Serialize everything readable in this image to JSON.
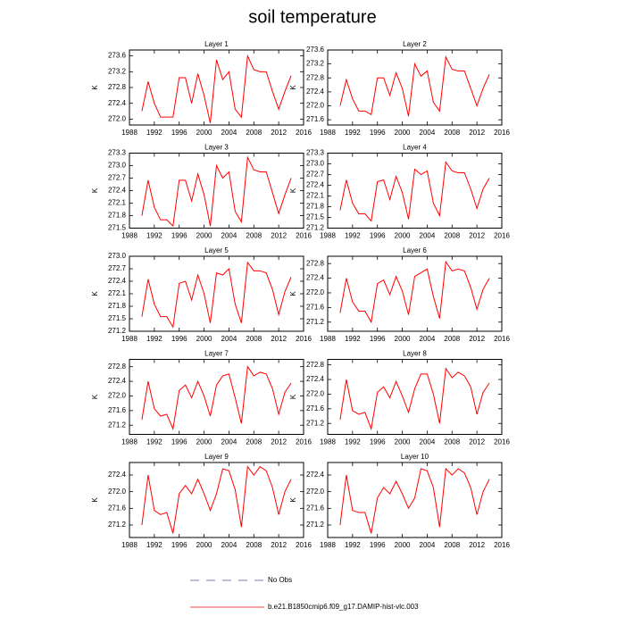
{
  "title": "soil temperature",
  "legend": [
    {
      "name": "No Obs",
      "color": "#4f4fa0",
      "dashed": true
    },
    {
      "name": "b.e21.B1850cmip6.f09_g17.DAMIP-hist-vlc.003",
      "color": "#ff0000",
      "dashed": false
    }
  ],
  "chart_data": [
    {
      "type": "line",
      "title": "Layer 1",
      "ylabel": "K",
      "color": "#ff0000",
      "xlim": [
        1988,
        2016
      ],
      "xticks": [
        1988,
        1992,
        1996,
        2000,
        2004,
        2008,
        2012,
        2016
      ],
      "ylim": [
        271.85,
        273.75
      ],
      "yticks": [
        {
          "value": 272,
          "label": "272.0"
        },
        272.4,
        272.8,
        273.2,
        273.6
      ],
      "x": [
        1990,
        1991,
        1992,
        1993,
        1994,
        1995,
        1996,
        1997,
        1998,
        1999,
        2000,
        2001,
        2002,
        2003,
        2004,
        2005,
        2006,
        2007,
        2008,
        2009,
        2010,
        2011,
        2012,
        2013,
        2014
      ],
      "values": [
        272.2,
        272.95,
        272.4,
        272.05,
        272.05,
        272.05,
        273.05,
        273.05,
        272.4,
        273.15,
        272.6,
        271.9,
        273.5,
        273.0,
        273.2,
        272.25,
        272.05,
        273.6,
        273.25,
        273.2,
        273.2,
        272.7,
        272.25,
        272.7,
        273.1
      ]
    },
    {
      "type": "line",
      "title": "Layer 2",
      "ylabel": "K",
      "color": "#ff0000",
      "xlim": [
        1988,
        2016
      ],
      "xticks": [
        1988,
        1992,
        1996,
        2000,
        2004,
        2008,
        2012,
        2016
      ],
      "ylim": [
        271.45,
        273.6
      ],
      "yticks": [
        271.6,
        {
          "value": 272,
          "label": "272.0"
        },
        272.4,
        272.8,
        273.2,
        273.6
      ],
      "x": [
        1990,
        1991,
        1992,
        1993,
        1994,
        1995,
        1996,
        1997,
        1998,
        1999,
        2000,
        2001,
        2002,
        2003,
        2004,
        2005,
        2006,
        2007,
        2008,
        2009,
        2010,
        2011,
        2012,
        2013,
        2014
      ],
      "values": [
        272.0,
        272.75,
        272.2,
        271.85,
        271.85,
        271.75,
        272.8,
        272.8,
        272.3,
        272.95,
        272.5,
        271.7,
        273.2,
        272.85,
        273.0,
        272.1,
        271.85,
        273.4,
        273.05,
        273.0,
        273.0,
        272.5,
        272.0,
        272.5,
        272.9
      ]
    },
    {
      "type": "line",
      "title": "Layer 3",
      "ylabel": "K",
      "color": "#ff0000",
      "xlim": [
        1988,
        2016
      ],
      "xticks": [
        1988,
        1992,
        1996,
        2000,
        2004,
        2008,
        2012,
        2016
      ],
      "ylim": [
        271.5,
        273.3
      ],
      "yticks": [
        271.5,
        271.8,
        272.1,
        272.4,
        272.7,
        {
          "value": 273,
          "label": "273.0"
        },
        273.3
      ],
      "x": [
        1990,
        1991,
        1992,
        1993,
        1994,
        1995,
        1996,
        1997,
        1998,
        1999,
        2000,
        2001,
        2002,
        2003,
        2004,
        2005,
        2006,
        2007,
        2008,
        2009,
        2010,
        2011,
        2012,
        2013,
        2014
      ],
      "values": [
        271.8,
        272.65,
        272.0,
        271.7,
        271.7,
        271.55,
        272.65,
        272.65,
        272.15,
        272.8,
        272.3,
        271.55,
        273.0,
        272.7,
        272.85,
        271.9,
        271.65,
        273.2,
        272.9,
        272.85,
        272.85,
        272.35,
        271.85,
        272.3,
        272.7
      ]
    },
    {
      "type": "line",
      "title": "Layer 4",
      "ylabel": "K",
      "color": "#ff0000",
      "xlim": [
        1988,
        2016
      ],
      "xticks": [
        1988,
        1992,
        1996,
        2000,
        2004,
        2008,
        2012,
        2016
      ],
      "ylim": [
        271.2,
        273.3
      ],
      "yticks": [
        271.2,
        271.5,
        271.8,
        272.1,
        272.4,
        272.7,
        {
          "value": 273,
          "label": "273.0"
        },
        273.3
      ],
      "x": [
        1990,
        1991,
        1992,
        1993,
        1994,
        1995,
        1996,
        1997,
        1998,
        1999,
        2000,
        2001,
        2002,
        2003,
        2004,
        2005,
        2006,
        2007,
        2008,
        2009,
        2010,
        2011,
        2012,
        2013,
        2014
      ],
      "values": [
        271.7,
        272.55,
        271.9,
        271.6,
        271.6,
        271.4,
        272.5,
        272.55,
        272.0,
        272.65,
        272.2,
        271.45,
        272.85,
        272.7,
        272.8,
        271.9,
        271.55,
        273.05,
        272.8,
        272.75,
        272.75,
        272.3,
        271.75,
        272.3,
        272.6
      ]
    },
    {
      "type": "line",
      "title": "Layer 5",
      "ylabel": "K",
      "color": "#ff0000",
      "xlim": [
        1988,
        2016
      ],
      "xticks": [
        1988,
        1992,
        1996,
        2000,
        2004,
        2008,
        2012,
        2016
      ],
      "ylim": [
        271.2,
        273.0
      ],
      "yticks": [
        271.2,
        271.5,
        271.8,
        272.1,
        272.4,
        272.7,
        {
          "value": 273,
          "label": "273.0"
        }
      ],
      "x": [
        1990,
        1991,
        1992,
        1993,
        1994,
        1995,
        1996,
        1997,
        1998,
        1999,
        2000,
        2001,
        2002,
        2003,
        2004,
        2005,
        2006,
        2007,
        2008,
        2009,
        2010,
        2011,
        2012,
        2013,
        2014
      ],
      "values": [
        271.55,
        272.45,
        271.85,
        271.55,
        271.55,
        271.3,
        272.35,
        272.4,
        271.95,
        272.55,
        272.1,
        271.4,
        272.6,
        272.55,
        272.7,
        271.85,
        271.4,
        272.85,
        272.65,
        272.65,
        272.6,
        272.2,
        271.6,
        272.15,
        272.5
      ]
    },
    {
      "type": "line",
      "title": "Layer 6",
      "ylabel": "K",
      "color": "#ff0000",
      "xlim": [
        1988,
        2016
      ],
      "xticks": [
        1988,
        1992,
        1996,
        2000,
        2004,
        2008,
        2012,
        2016
      ],
      "ylim": [
        270.95,
        273.0
      ],
      "yticks": [
        271.2,
        271.6,
        {
          "value": 272,
          "label": "272.0"
        },
        272.4,
        272.8
      ],
      "x": [
        1990,
        1991,
        1992,
        1993,
        1994,
        1995,
        1996,
        1997,
        1998,
        1999,
        2000,
        2001,
        2002,
        2003,
        2004,
        2005,
        2006,
        2007,
        2008,
        2009,
        2010,
        2011,
        2012,
        2013,
        2014
      ],
      "values": [
        271.45,
        272.4,
        271.75,
        271.5,
        271.5,
        271.2,
        272.25,
        272.35,
        271.95,
        272.45,
        272.05,
        271.4,
        272.45,
        272.55,
        272.65,
        271.9,
        271.3,
        272.85,
        272.6,
        272.65,
        272.6,
        272.15,
        271.55,
        272.1,
        272.4
      ]
    },
    {
      "type": "line",
      "title": "Layer 7",
      "ylabel": "K",
      "color": "#ff0000",
      "xlim": [
        1988,
        2016
      ],
      "xticks": [
        1988,
        1992,
        1996,
        2000,
        2004,
        2008,
        2012,
        2016
      ],
      "ylim": [
        270.95,
        273.0
      ],
      "yticks": [
        271.2,
        271.6,
        {
          "value": 272,
          "label": "272.0"
        },
        272.4,
        272.8
      ],
      "x": [
        1990,
        1991,
        1992,
        1993,
        1994,
        1995,
        1996,
        1997,
        1998,
        1999,
        2000,
        2001,
        2002,
        2003,
        2004,
        2005,
        2006,
        2007,
        2008,
        2009,
        2010,
        2011,
        2012,
        2013,
        2014
      ],
      "values": [
        271.35,
        272.4,
        271.65,
        271.45,
        271.5,
        271.1,
        272.15,
        272.3,
        271.95,
        272.4,
        272.0,
        271.45,
        272.3,
        272.55,
        272.6,
        271.95,
        271.25,
        272.8,
        272.55,
        272.65,
        272.6,
        272.2,
        271.5,
        272.1,
        272.35
      ]
    },
    {
      "type": "line",
      "title": "Layer 8",
      "ylabel": "K",
      "color": "#ff0000",
      "xlim": [
        1988,
        2016
      ],
      "xticks": [
        1988,
        1992,
        1996,
        2000,
        2004,
        2008,
        2012,
        2016
      ],
      "ylim": [
        270.9,
        272.95
      ],
      "yticks": [
        271.2,
        271.6,
        {
          "value": 272,
          "label": "272.0"
        },
        272.4,
        272.8
      ],
      "x": [
        1990,
        1991,
        1992,
        1993,
        1994,
        1995,
        1996,
        1997,
        1998,
        1999,
        2000,
        2001,
        2002,
        2003,
        2004,
        2005,
        2006,
        2007,
        2008,
        2009,
        2010,
        2011,
        2012,
        2013,
        2014
      ],
      "values": [
        271.3,
        272.4,
        271.55,
        271.45,
        271.5,
        271.05,
        272.05,
        272.2,
        271.9,
        272.35,
        271.95,
        271.5,
        272.15,
        272.55,
        272.55,
        272.0,
        271.2,
        272.7,
        272.45,
        272.6,
        272.5,
        272.2,
        271.45,
        272.05,
        272.3
      ]
    },
    {
      "type": "line",
      "title": "Layer 9",
      "ylabel": "K",
      "color": "#ff0000",
      "xlim": [
        1988,
        2016
      ],
      "xticks": [
        1988,
        1992,
        1996,
        2000,
        2004,
        2008,
        2012,
        2016
      ],
      "ylim": [
        270.9,
        272.7
      ],
      "yticks": [
        271.2,
        271.6,
        {
          "value": 272,
          "label": "272.0"
        },
        272.4
      ],
      "x": [
        1990,
        1991,
        1992,
        1993,
        1994,
        1995,
        1996,
        1997,
        1998,
        1999,
        2000,
        2001,
        2002,
        2003,
        2004,
        2005,
        2006,
        2007,
        2008,
        2009,
        2010,
        2011,
        2012,
        2013,
        2014
      ],
      "values": [
        271.2,
        272.4,
        271.55,
        271.45,
        271.5,
        271.0,
        271.95,
        272.15,
        271.95,
        272.3,
        271.95,
        271.55,
        271.95,
        272.55,
        272.5,
        272.05,
        271.15,
        272.6,
        272.4,
        272.6,
        272.5,
        272.1,
        271.45,
        272.0,
        272.3
      ]
    },
    {
      "type": "line",
      "title": "Layer 10",
      "ylabel": "K",
      "color": "#ff0000",
      "xlim": [
        1988,
        2016
      ],
      "xticks": [
        1988,
        1992,
        1996,
        2000,
        2004,
        2008,
        2012,
        2016
      ],
      "ylim": [
        270.9,
        272.7
      ],
      "yticks": [
        271.2,
        271.6,
        {
          "value": 272,
          "label": "272.0"
        },
        272.4
      ],
      "x": [
        1990,
        1991,
        1992,
        1993,
        1994,
        1995,
        1996,
        1997,
        1998,
        1999,
        2000,
        2001,
        2002,
        2003,
        2004,
        2005,
        2006,
        2007,
        2008,
        2009,
        2010,
        2011,
        2012,
        2013,
        2014
      ],
      "values": [
        271.2,
        272.4,
        271.55,
        271.5,
        271.5,
        271.0,
        271.85,
        272.1,
        271.95,
        272.25,
        271.95,
        271.6,
        271.85,
        272.55,
        272.5,
        272.1,
        271.15,
        272.55,
        272.4,
        272.55,
        272.45,
        272.1,
        271.45,
        272.0,
        272.3
      ]
    }
  ]
}
